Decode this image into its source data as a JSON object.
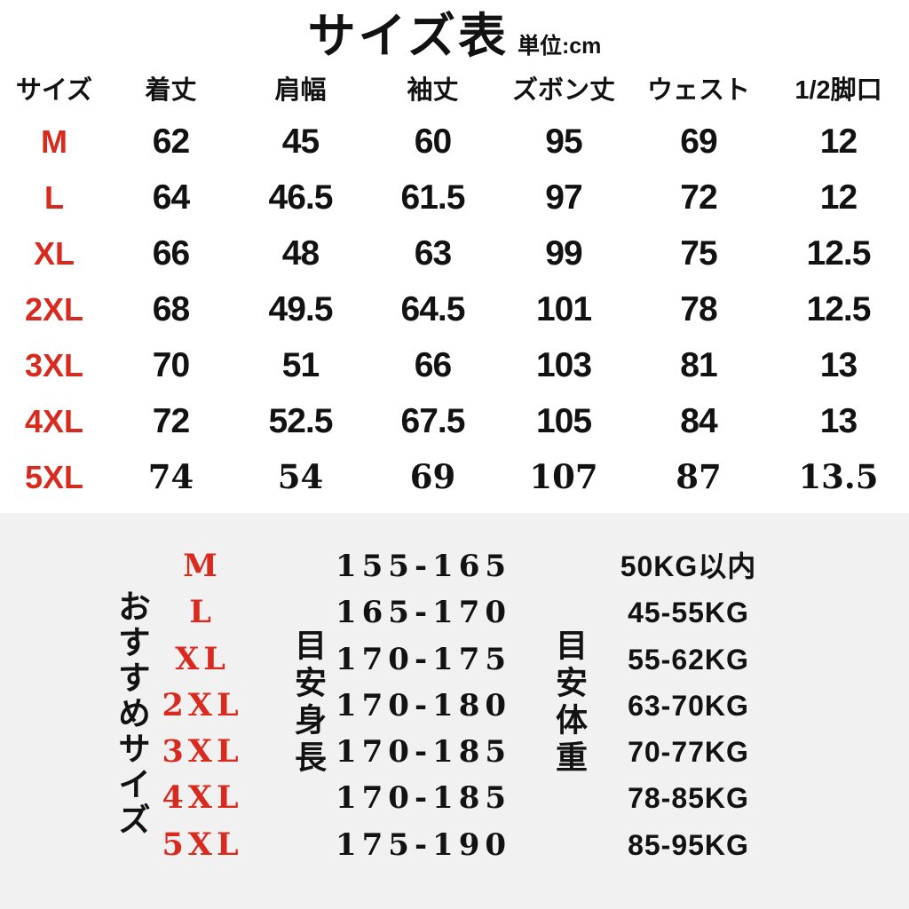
{
  "title": "サイズ表",
  "unit_label": "単位:cm",
  "colors": {
    "accent_red": "#d92a1f",
    "text": "#121212",
    "section_bg": "#f1f1f2"
  },
  "size_table": {
    "columns": [
      "サイズ",
      "着丈",
      "肩幅",
      "袖丈",
      "ズボン丈",
      "ウェスト",
      "1/2脚口"
    ],
    "rows": [
      {
        "size": "M",
        "values": [
          "62",
          "45",
          "60",
          "95",
          "69",
          "12"
        ]
      },
      {
        "size": "L",
        "values": [
          "64",
          "46.5",
          "61.5",
          "97",
          "72",
          "12"
        ]
      },
      {
        "size": "XL",
        "values": [
          "66",
          "48",
          "63",
          "99",
          "75",
          "12.5"
        ]
      },
      {
        "size": "2XL",
        "values": [
          "68",
          "49.5",
          "64.5",
          "101",
          "78",
          "12.5"
        ]
      },
      {
        "size": "3XL",
        "values": [
          "70",
          "51",
          "66",
          "103",
          "81",
          "13"
        ]
      },
      {
        "size": "4XL",
        "values": [
          "72",
          "52.5",
          "67.5",
          "105",
          "84",
          "13"
        ]
      },
      {
        "size": "5XL",
        "values": [
          "74",
          "54",
          "69",
          "107",
          "87",
          "13.5"
        ]
      }
    ]
  },
  "recommend": {
    "side_label": "おすすめサイズ",
    "height_label": "目安身長",
    "weight_label": "目安体重",
    "rows": [
      {
        "size": "M",
        "height": "155-165",
        "weight": "50KG以内"
      },
      {
        "size": "L",
        "height": "165-170",
        "weight": "45-55KG"
      },
      {
        "size": "XL",
        "height": "170-175",
        "weight": "55-62KG"
      },
      {
        "size": "2XL",
        "height": "170-180",
        "weight": "63-70KG"
      },
      {
        "size": "3XL",
        "height": "170-185",
        "weight": "70-77KG"
      },
      {
        "size": "4XL",
        "height": "170-185",
        "weight": "78-85KG"
      },
      {
        "size": "5XL",
        "height": "175-190",
        "weight": "85-95KG"
      }
    ]
  }
}
